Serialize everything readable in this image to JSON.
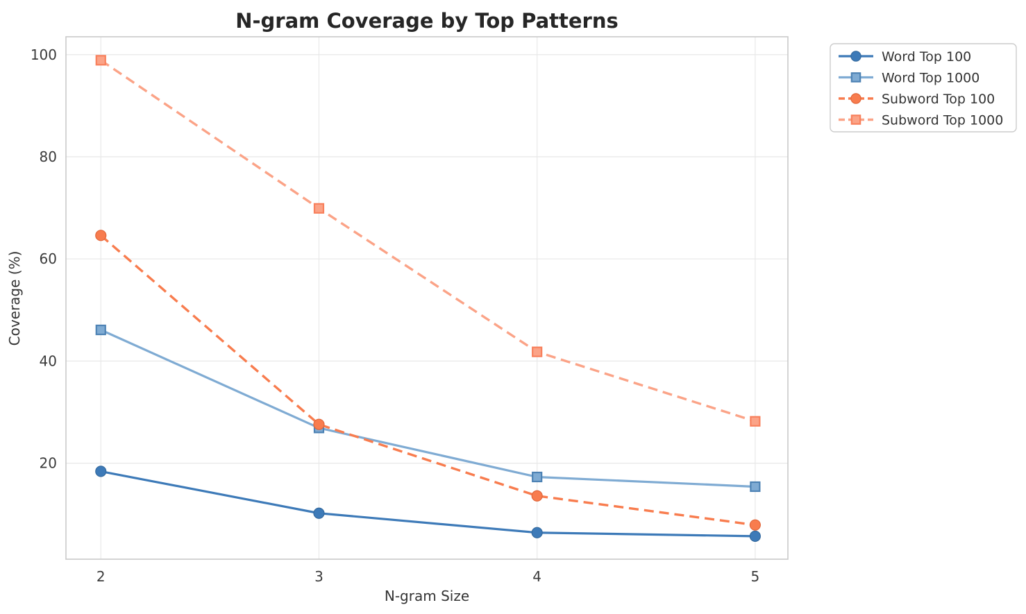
{
  "title": "N-gram Coverage by Top Patterns",
  "chart_data": {
    "type": "line",
    "title": "N-gram Coverage by Top Patterns",
    "xlabel": "N-gram Size",
    "ylabel": "Coverage (%)",
    "x": [
      2,
      3,
      4,
      5
    ],
    "xticks": [
      2,
      3,
      4,
      5
    ],
    "yticks": [
      20,
      40,
      60,
      80,
      100
    ],
    "xlim": [
      1.84,
      5.15
    ],
    "ylim": [
      1.2,
      103.5
    ],
    "grid": true,
    "legend_position": "outside-top-right",
    "series": [
      {
        "name": "Word Top 100",
        "values": [
          18.4,
          10.2,
          6.4,
          5.7
        ],
        "color": "#3d7ab8",
        "marker_edge": "#346a9f",
        "line_style": "solid",
        "marker": "circle"
      },
      {
        "name": "Word Top 1000",
        "values": [
          46.1,
          26.9,
          17.3,
          15.4
        ],
        "color": "#7fabd3",
        "marker_edge": "#4d82b4",
        "line_style": "solid",
        "marker": "square"
      },
      {
        "name": "Subword Top 100",
        "values": [
          64.6,
          27.6,
          13.6,
          7.9
        ],
        "color": "#f87c4e",
        "marker_edge": "#e1663a",
        "line_style": "dashed",
        "marker": "circle"
      },
      {
        "name": "Subword Top 1000",
        "values": [
          98.9,
          69.9,
          41.8,
          28.2
        ],
        "color": "#fba387",
        "marker_edge": "#f8805c",
        "line_style": "dashed",
        "marker": "square"
      }
    ]
  },
  "style_colors": {
    "title": "#262626",
    "tick_label": "#3a3a3a",
    "axis_label": "#333333",
    "grid": "#e8e8e8",
    "spine": "#c9c9c9",
    "legend_border": "#cccccc",
    "legend_text": "#333333",
    "background": "#ffffff"
  }
}
